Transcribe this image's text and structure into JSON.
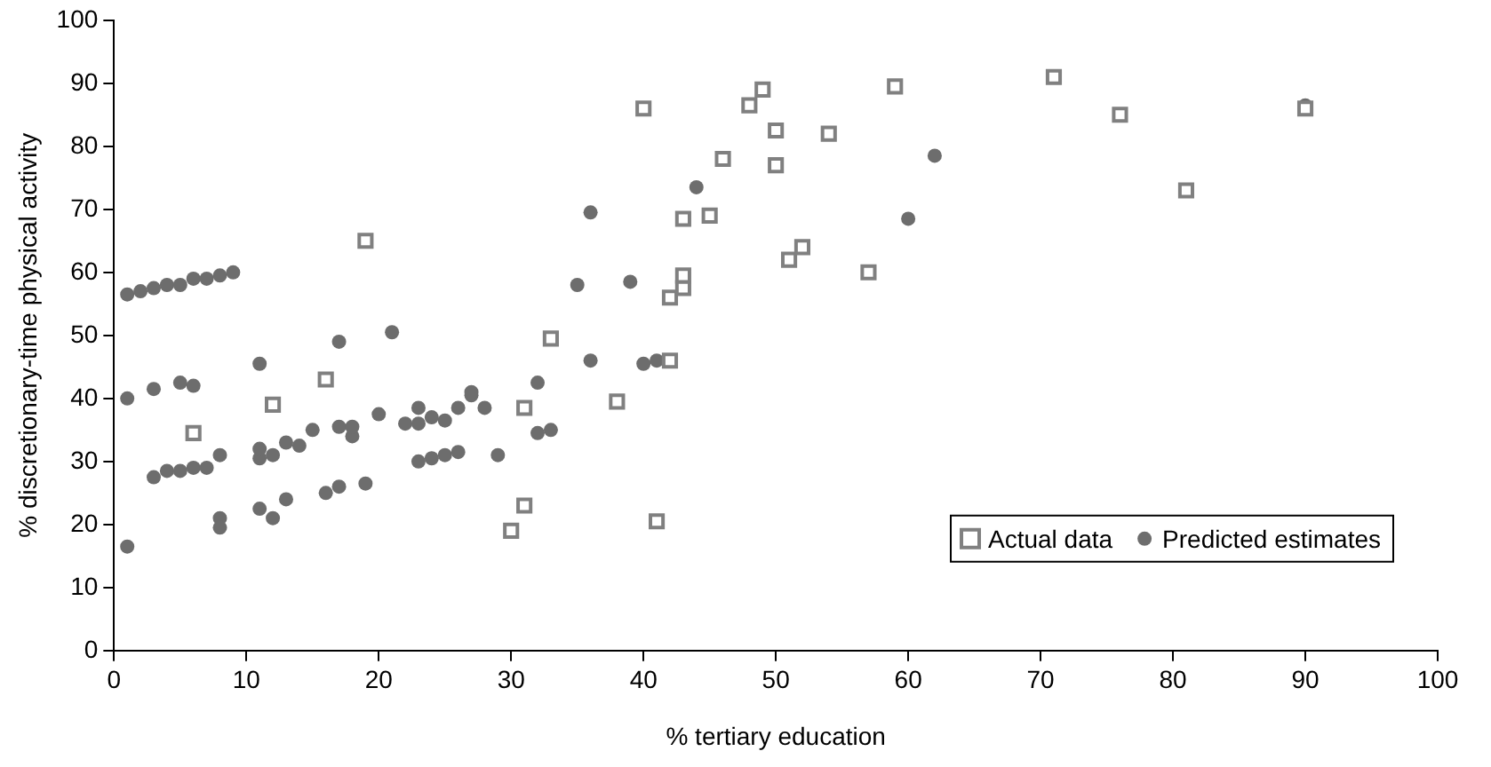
{
  "chart_data": {
    "type": "scatter",
    "xlabel": "% tertiary education",
    "ylabel": "% discretionary-time physical activity",
    "xlim": [
      0,
      100
    ],
    "xticks": [
      0,
      10,
      20,
      30,
      40,
      50,
      60,
      70,
      80,
      90,
      100
    ],
    "ylim": [
      0,
      100
    ],
    "yticks": [
      0,
      10,
      20,
      30,
      40,
      50,
      60,
      70,
      80,
      90,
      100
    ],
    "grid": false,
    "legend": "bottom right",
    "series": [
      {
        "name": "Actual data",
        "color": "#808080",
        "marker": "square",
        "x": [
          6,
          12,
          16,
          19,
          30,
          31,
          31,
          33,
          38,
          40,
          41,
          42,
          42,
          43,
          43,
          43,
          45,
          46,
          48,
          49,
          50,
          50,
          51,
          52,
          54,
          57,
          59,
          71,
          76,
          81,
          90
        ],
        "values": [
          34.5,
          39,
          43,
          65,
          19,
          23,
          38.5,
          49.5,
          39.5,
          86,
          20.5,
          46,
          56,
          57.5,
          59.5,
          68.5,
          69,
          78,
          86.5,
          89,
          77,
          82.5,
          62,
          64,
          82,
          60,
          89.5,
          91,
          85,
          73,
          86
        ]
      },
      {
        "name": "Predicted estimates",
        "color": "#6d6d6d",
        "marker": "circle",
        "x": [
          1,
          2,
          3,
          4,
          5,
          6,
          7,
          8,
          9,
          1,
          3,
          5,
          6,
          11,
          17,
          21,
          36,
          35,
          39,
          44,
          60,
          62,
          90,
          3,
          4,
          5,
          6,
          7,
          8,
          11,
          11,
          12,
          13,
          14,
          15,
          17,
          18,
          18,
          20,
          22,
          23,
          24,
          25,
          26,
          27,
          28,
          32,
          32,
          33,
          36,
          40,
          41,
          1,
          8,
          8,
          11,
          12,
          13,
          16,
          17,
          19,
          23,
          24,
          25,
          26,
          29,
          23,
          27
        ],
        "values": [
          56.5,
          57,
          57.5,
          58,
          58,
          59,
          59,
          59.5,
          60,
          40,
          41.5,
          42.5,
          42,
          45.5,
          49,
          50.5,
          69.5,
          58,
          58.5,
          73.5,
          68.5,
          78.5,
          86.5,
          27.5,
          28.5,
          28.5,
          29,
          29,
          31,
          30.5,
          32,
          31,
          33,
          32.5,
          35,
          35.5,
          34,
          35.5,
          37.5,
          36,
          36,
          37,
          36.5,
          38.5,
          40.5,
          38.5,
          42.5,
          34.5,
          35,
          46,
          45.5,
          46,
          16.5,
          21,
          19.5,
          22.5,
          21,
          24,
          25,
          26,
          26.5,
          30,
          30.5,
          31,
          31.5,
          31,
          38.5,
          41
        ]
      }
    ]
  }
}
